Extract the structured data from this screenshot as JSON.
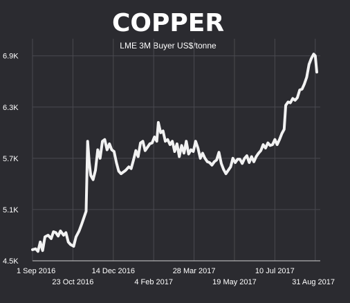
{
  "chart_data": {
    "type": "line",
    "title": "COPPER",
    "subtitle": "LME 3M Buyer US$/tonne",
    "xlabel": "",
    "ylabel": "",
    "ylim": [
      4500,
      7100
    ],
    "y_ticks": [
      {
        "value": 4500,
        "label": "4.5K"
      },
      {
        "value": 5100,
        "label": "5.1K"
      },
      {
        "value": 5700,
        "label": "5.7K"
      },
      {
        "value": 6300,
        "label": "6.3K"
      },
      {
        "value": 6900,
        "label": "6.9K"
      }
    ],
    "x_ticks": [
      {
        "date": "2016-09-01",
        "label": "1 Sep 2016",
        "row": 0
      },
      {
        "date": "2016-10-23",
        "label": "23 Oct 2016",
        "row": 1
      },
      {
        "date": "2016-12-14",
        "label": "14 Dec 2016",
        "row": 0
      },
      {
        "date": "2017-02-04",
        "label": "4 Feb 2017",
        "row": 1
      },
      {
        "date": "2017-03-28",
        "label": "28 Mar 2017",
        "row": 0
      },
      {
        "date": "2017-05-19",
        "label": "19 May 2017",
        "row": 1
      },
      {
        "date": "2017-07-10",
        "label": "10 Jul 2017",
        "row": 0
      },
      {
        "date": "2017-08-31",
        "label": "31 Aug 2017",
        "row": 1
      }
    ],
    "grid": true,
    "legend": "none",
    "color": "#f2f2f2",
    "series": [
      {
        "points": [
          [
            "2016-09-01",
            4630
          ],
          [
            "2016-09-05",
            4640
          ],
          [
            "2016-09-08",
            4610
          ],
          [
            "2016-09-11",
            4720
          ],
          [
            "2016-09-14",
            4620
          ],
          [
            "2016-09-17",
            4780
          ],
          [
            "2016-09-21",
            4800
          ],
          [
            "2016-09-25",
            4760
          ],
          [
            "2016-09-28",
            4840
          ],
          [
            "2016-10-01",
            4830
          ],
          [
            "2016-10-04",
            4790
          ],
          [
            "2016-10-07",
            4850
          ],
          [
            "2016-10-11",
            4800
          ],
          [
            "2016-10-14",
            4830
          ],
          [
            "2016-10-17",
            4720
          ],
          [
            "2016-10-20",
            4690
          ],
          [
            "2016-10-24",
            4670
          ],
          [
            "2016-10-27",
            4780
          ],
          [
            "2016-10-31",
            4850
          ],
          [
            "2016-11-03",
            4920
          ],
          [
            "2016-11-06",
            5000
          ],
          [
            "2016-11-09",
            5080
          ],
          [
            "2016-11-11",
            5900
          ],
          [
            "2016-11-13",
            5650
          ],
          [
            "2016-11-15",
            5500
          ],
          [
            "2016-11-18",
            5450
          ],
          [
            "2016-11-21",
            5560
          ],
          [
            "2016-11-24",
            5800
          ],
          [
            "2016-11-27",
            5700
          ],
          [
            "2016-11-30",
            5900
          ],
          [
            "2016-12-03",
            5920
          ],
          [
            "2016-12-06",
            5800
          ],
          [
            "2016-12-09",
            5870
          ],
          [
            "2016-12-12",
            5800
          ],
          [
            "2016-12-15",
            5780
          ],
          [
            "2016-12-18",
            5650
          ],
          [
            "2016-12-21",
            5550
          ],
          [
            "2016-12-24",
            5520
          ],
          [
            "2016-12-27",
            5540
          ],
          [
            "2016-12-30",
            5560
          ],
          [
            "2017-01-03",
            5600
          ],
          [
            "2017-01-06",
            5580
          ],
          [
            "2017-01-09",
            5680
          ],
          [
            "2017-01-12",
            5790
          ],
          [
            "2017-01-15",
            5720
          ],
          [
            "2017-01-18",
            5880
          ],
          [
            "2017-01-21",
            5900
          ],
          [
            "2017-01-24",
            5790
          ],
          [
            "2017-01-27",
            5830
          ],
          [
            "2017-01-30",
            5870
          ],
          [
            "2017-02-02",
            5880
          ],
          [
            "2017-02-05",
            5950
          ],
          [
            "2017-02-08",
            5900
          ],
          [
            "2017-02-10",
            6120
          ],
          [
            "2017-02-13",
            6000
          ],
          [
            "2017-02-16",
            6020
          ],
          [
            "2017-02-19",
            5900
          ],
          [
            "2017-02-22",
            5920
          ],
          [
            "2017-02-25",
            5860
          ],
          [
            "2017-02-28",
            5900
          ],
          [
            "2017-03-03",
            5780
          ],
          [
            "2017-03-06",
            5870
          ],
          [
            "2017-03-09",
            5720
          ],
          [
            "2017-03-12",
            5850
          ],
          [
            "2017-03-15",
            5760
          ],
          [
            "2017-03-18",
            5900
          ],
          [
            "2017-03-21",
            5750
          ],
          [
            "2017-03-24",
            5800
          ],
          [
            "2017-03-27",
            5780
          ],
          [
            "2017-03-30",
            5900
          ],
          [
            "2017-04-02",
            5820
          ],
          [
            "2017-04-05",
            5700
          ],
          [
            "2017-04-08",
            5760
          ],
          [
            "2017-04-11",
            5700
          ],
          [
            "2017-04-14",
            5660
          ],
          [
            "2017-04-17",
            5650
          ],
          [
            "2017-04-20",
            5620
          ],
          [
            "2017-04-23",
            5660
          ],
          [
            "2017-04-26",
            5680
          ],
          [
            "2017-04-29",
            5770
          ],
          [
            "2017-05-02",
            5640
          ],
          [
            "2017-05-05",
            5570
          ],
          [
            "2017-05-08",
            5520
          ],
          [
            "2017-05-11",
            5560
          ],
          [
            "2017-05-14",
            5600
          ],
          [
            "2017-05-17",
            5700
          ],
          [
            "2017-05-20",
            5650
          ],
          [
            "2017-05-23",
            5690
          ],
          [
            "2017-05-26",
            5690
          ],
          [
            "2017-05-29",
            5640
          ],
          [
            "2017-06-01",
            5700
          ],
          [
            "2017-06-04",
            5730
          ],
          [
            "2017-06-07",
            5650
          ],
          [
            "2017-06-10",
            5720
          ],
          [
            "2017-06-13",
            5660
          ],
          [
            "2017-06-16",
            5720
          ],
          [
            "2017-06-19",
            5760
          ],
          [
            "2017-06-22",
            5790
          ],
          [
            "2017-06-25",
            5860
          ],
          [
            "2017-06-28",
            5820
          ],
          [
            "2017-07-01",
            5880
          ],
          [
            "2017-07-04",
            5850
          ],
          [
            "2017-07-07",
            5860
          ],
          [
            "2017-07-10",
            5920
          ],
          [
            "2017-07-13",
            5860
          ],
          [
            "2017-07-16",
            5920
          ],
          [
            "2017-07-19",
            5990
          ],
          [
            "2017-07-22",
            6040
          ],
          [
            "2017-07-24",
            6320
          ],
          [
            "2017-07-27",
            6360
          ],
          [
            "2017-07-30",
            6350
          ],
          [
            "2017-08-02",
            6400
          ],
          [
            "2017-08-05",
            6380
          ],
          [
            "2017-08-08",
            6410
          ],
          [
            "2017-08-11",
            6500
          ],
          [
            "2017-08-14",
            6510
          ],
          [
            "2017-08-17",
            6570
          ],
          [
            "2017-08-20",
            6650
          ],
          [
            "2017-08-23",
            6800
          ],
          [
            "2017-08-26",
            6870
          ],
          [
            "2017-08-29",
            6920
          ],
          [
            "2017-08-31",
            6900
          ],
          [
            "2017-09-02",
            6710
          ]
        ]
      }
    ]
  }
}
